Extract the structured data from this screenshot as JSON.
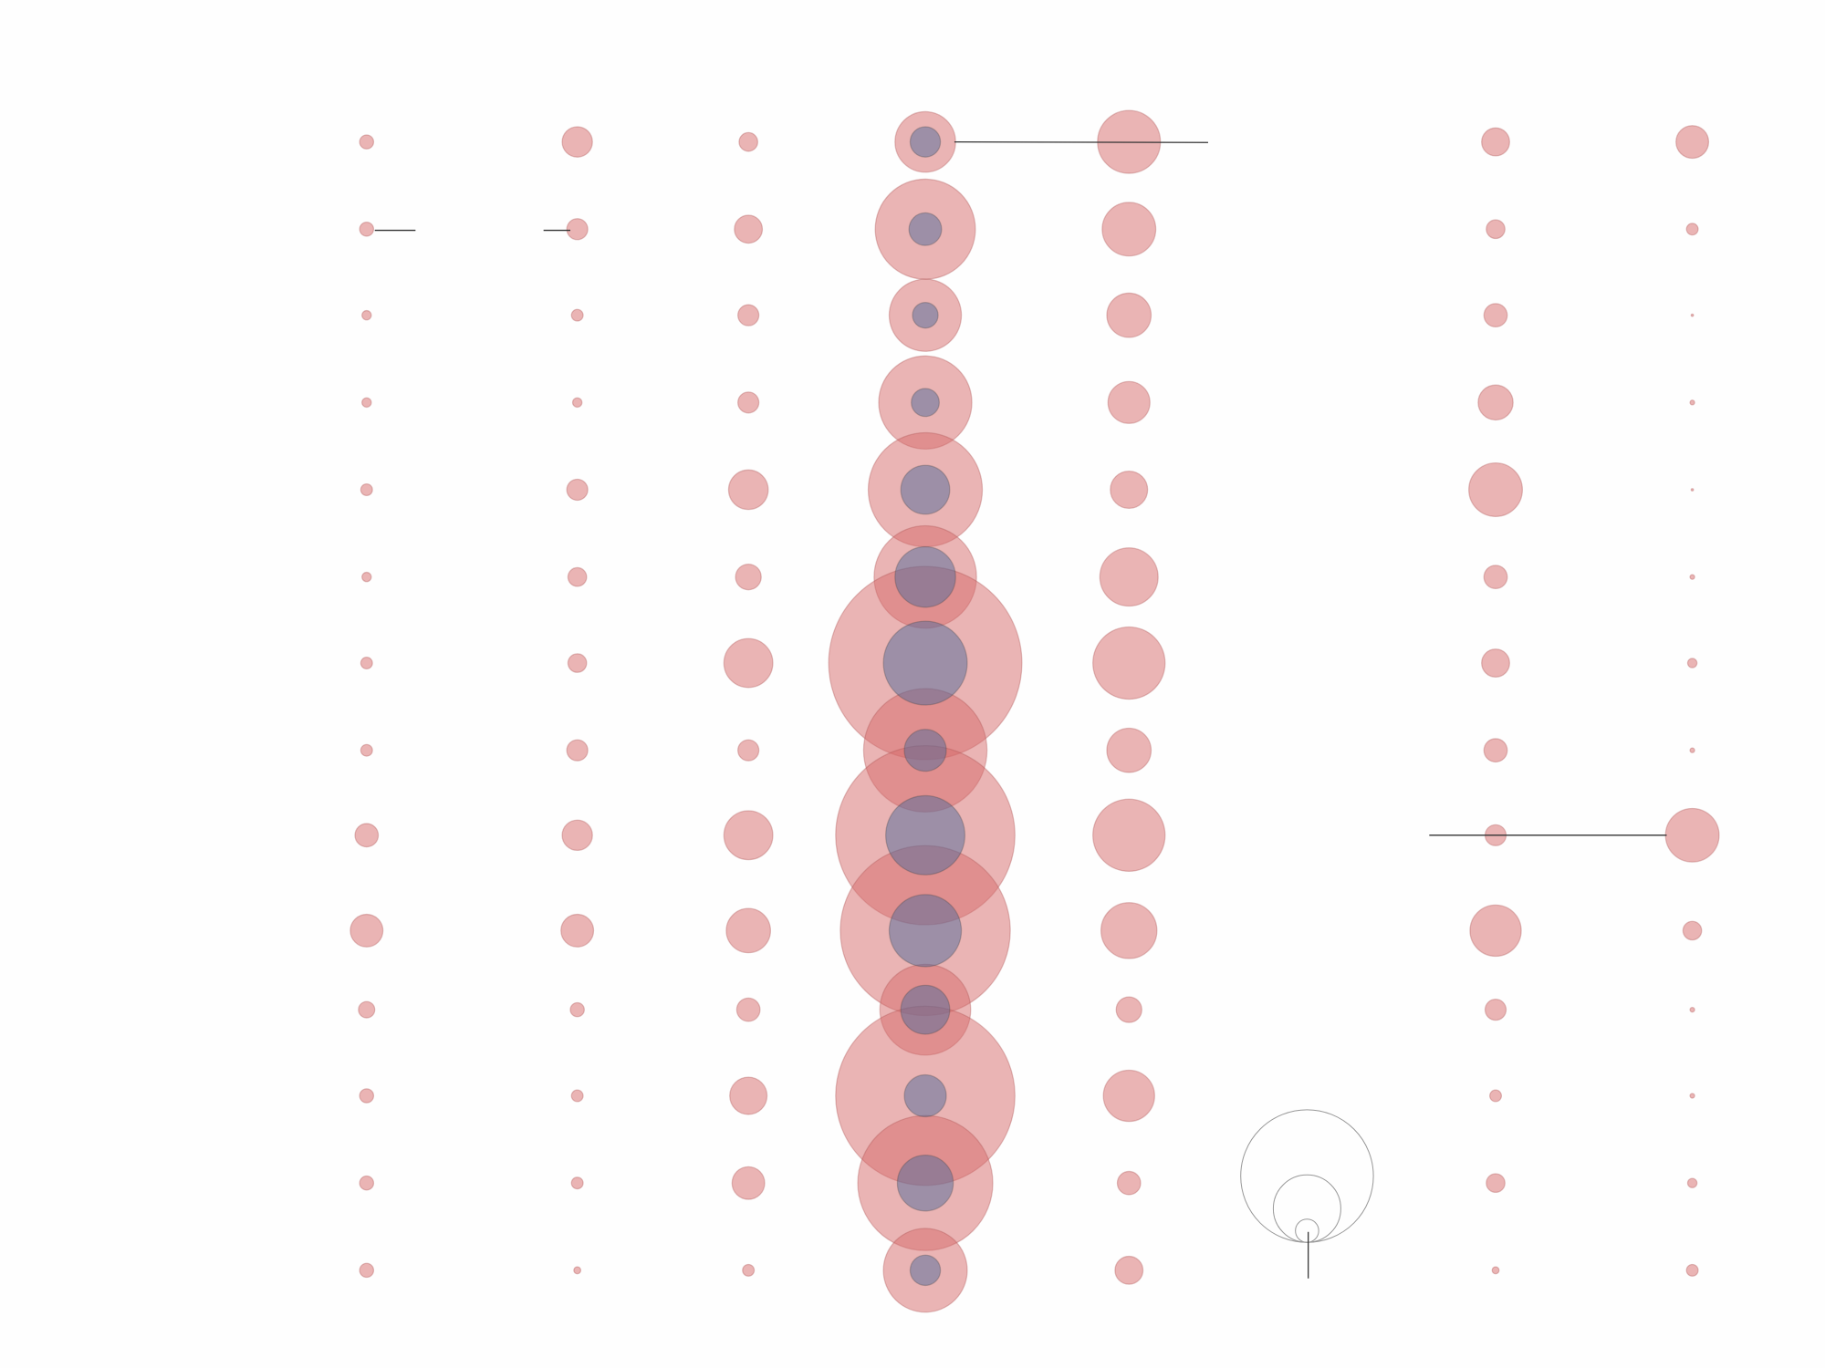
{
  "chart_data": {
    "type": "bubble-grid",
    "series": [
      {
        "color": "#d66a6a",
        "values": [
          6,
          6,
          4,
          4,
          5,
          4,
          5,
          5,
          10,
          14,
          7,
          6,
          6,
          6
        ]
      },
      {
        "color": "#d66a6a",
        "values": [
          13,
          9,
          5,
          4,
          9,
          8,
          8,
          9,
          13,
          14,
          6,
          5,
          5,
          3
        ]
      },
      {
        "color": "#d66a6a",
        "values": [
          8,
          12,
          9,
          9,
          17,
          11,
          21,
          9,
          21,
          19,
          10,
          16,
          14,
          5
        ]
      },
      {
        "color": "#d66a6a",
        "values": [
          26,
          43,
          31,
          40,
          49,
          44,
          83,
          53,
          77,
          73,
          39,
          77,
          58,
          36
        ]
      },
      {
        "color": "#d66a6a",
        "values": [
          27,
          23,
          19,
          18,
          16,
          25,
          31,
          19,
          31,
          24,
          11,
          22,
          10,
          12
        ]
      },
      {
        "color": "#d66a6a",
        "values": [
          12,
          8,
          10,
          15,
          23,
          10,
          12,
          10,
          9,
          22,
          9,
          5,
          8,
          3
        ]
      },
      {
        "color": "#d66a6a",
        "values": [
          14,
          5,
          1,
          2,
          1,
          2,
          4,
          2,
          23,
          8,
          2,
          2,
          4,
          5
        ]
      }
    ],
    "inner": {
      "color": "#4f6a99",
      "values": [
        13,
        14,
        11,
        12,
        21,
        26,
        36,
        18,
        34,
        31,
        21,
        18,
        24,
        13
      ]
    }
  }
}
